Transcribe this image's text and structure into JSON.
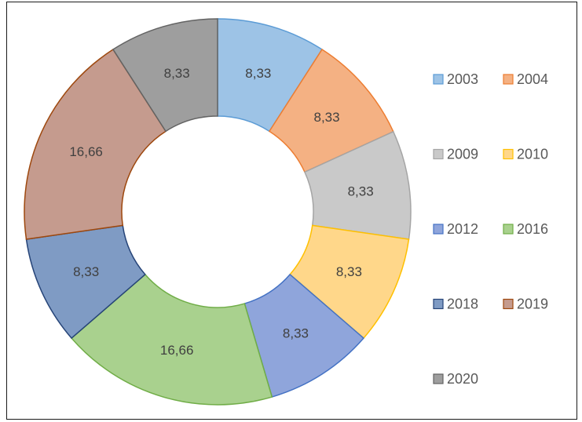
{
  "chart_data": {
    "type": "pie",
    "variant": "doughnut",
    "categories": [
      "2003",
      "2004",
      "2009",
      "2010",
      "2012",
      "2016",
      "2018",
      "2019",
      "2020"
    ],
    "values": [
      8.33,
      8.33,
      8.33,
      8.33,
      8.33,
      16.66,
      8.33,
      16.66,
      8.33
    ],
    "data_labels": [
      "8,33",
      "8,33",
      "8,33",
      "8,33",
      "8,33",
      "16,66",
      "8,33",
      "16,66",
      "8,33"
    ],
    "colors": [
      "#9DC3E6",
      "#F4B183",
      "#C9C9C9",
      "#FFD78A",
      "#8FA5DB",
      "#A9D18E",
      "#7F9BC4",
      "#C59B8E",
      "#9E9E9E"
    ],
    "stroke_colors": [
      "#5B9BD5",
      "#ED7D31",
      "#A5A5A5",
      "#FFC000",
      "#4472C4",
      "#70AD47",
      "#264478",
      "#9E480E",
      "#636363"
    ],
    "legend": {
      "placement": "right",
      "columns": 2,
      "entries": [
        "2003",
        "2004",
        "2009",
        "2010",
        "2012",
        "2016",
        "2018",
        "2019",
        "2020"
      ]
    }
  }
}
